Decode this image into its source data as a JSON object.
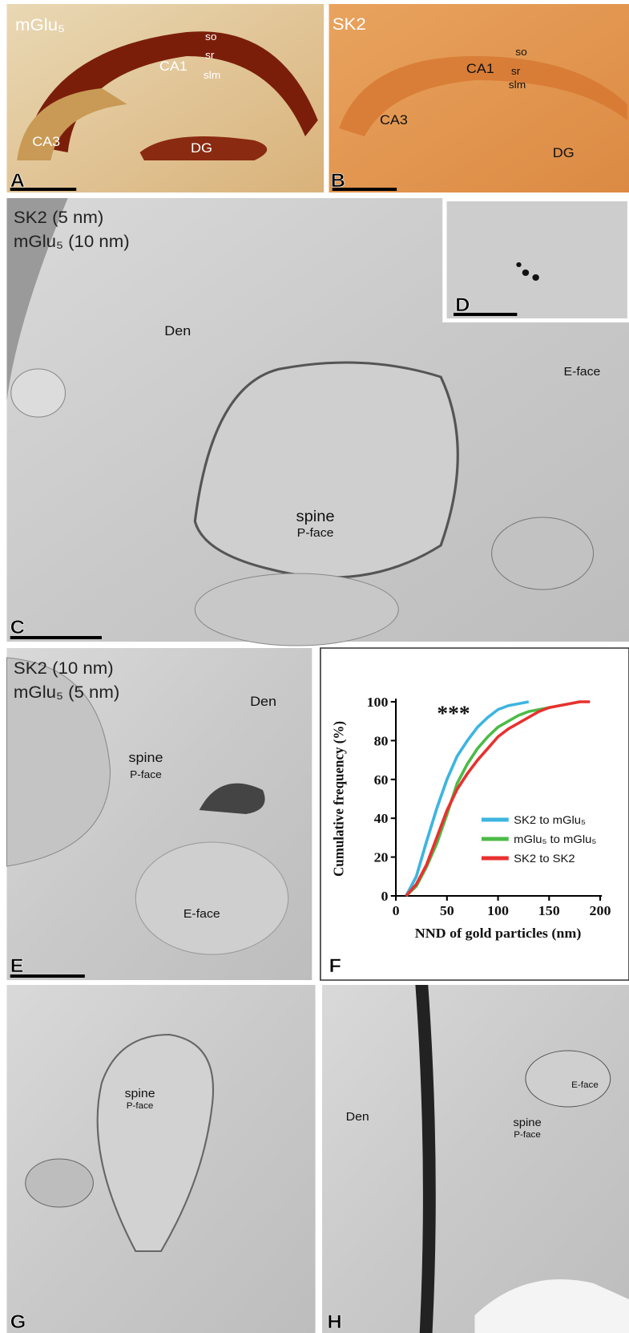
{
  "panels": {
    "A": {
      "label": "A",
      "title": "mGlu₅",
      "regions": [
        "CA1",
        "so",
        "sr",
        "slm",
        "CA3",
        "DG"
      ]
    },
    "B": {
      "label": "B",
      "title": "SK2",
      "regions": [
        "CA1",
        "so",
        "sr",
        "slm",
        "CA3",
        "DG"
      ]
    },
    "C": {
      "label": "C",
      "title": [
        "SK2 (5 nm)",
        "mGlu₅ (10 nm)"
      ],
      "regions": [
        "Den",
        "E-face",
        "spine",
        "P-face"
      ]
    },
    "D": {
      "label": "D"
    },
    "E": {
      "label": "E",
      "title": [
        "SK2 (10 nm)",
        "mGlu₅ (5 nm)"
      ],
      "regions": [
        "Den",
        "spine",
        "P-face",
        "E-face"
      ]
    },
    "F": {
      "label": "F"
    },
    "G": {
      "label": "G",
      "regions": [
        "spine",
        "P-face"
      ]
    },
    "H": {
      "label": "H",
      "regions": [
        "Den",
        "E-face",
        "spine",
        "P-face"
      ]
    }
  },
  "chart_data": {
    "type": "line",
    "annotation": "***",
    "x_label": "NND of gold particles (nm)",
    "y_label": "Cumulative frequency (%)",
    "x": [
      10,
      20,
      30,
      40,
      50,
      60,
      70,
      80,
      90,
      100,
      110,
      120,
      130,
      140,
      150,
      160,
      170,
      180,
      190
    ],
    "series": [
      {
        "name": "SK2 to mGlu₅",
        "color": "#3db5e0",
        "values": [
          0,
          10,
          28,
          45,
          60,
          72,
          80,
          87,
          92,
          96,
          98,
          99,
          100,
          null,
          null,
          null,
          null,
          null,
          null
        ]
      },
      {
        "name": "mGlu₅ to mGlu₅",
        "color": "#4cbb47",
        "values": [
          0,
          5,
          15,
          27,
          42,
          58,
          68,
          76,
          82,
          87,
          90,
          93,
          95,
          96,
          97,
          98,
          99,
          100,
          null
        ]
      },
      {
        "name": "SK2 to SK2",
        "color": "#e8312f",
        "values": [
          0,
          6,
          16,
          30,
          44,
          55,
          63,
          70,
          76,
          82,
          86,
          89,
          92,
          95,
          97,
          98,
          99,
          100,
          100
        ]
      }
    ],
    "xlim": [
      0,
      200
    ],
    "xticks": [
      0,
      50,
      100,
      150,
      200
    ],
    "ylim": [
      0,
      100
    ],
    "yticks": [
      0,
      20,
      40,
      60,
      80,
      100
    ]
  }
}
